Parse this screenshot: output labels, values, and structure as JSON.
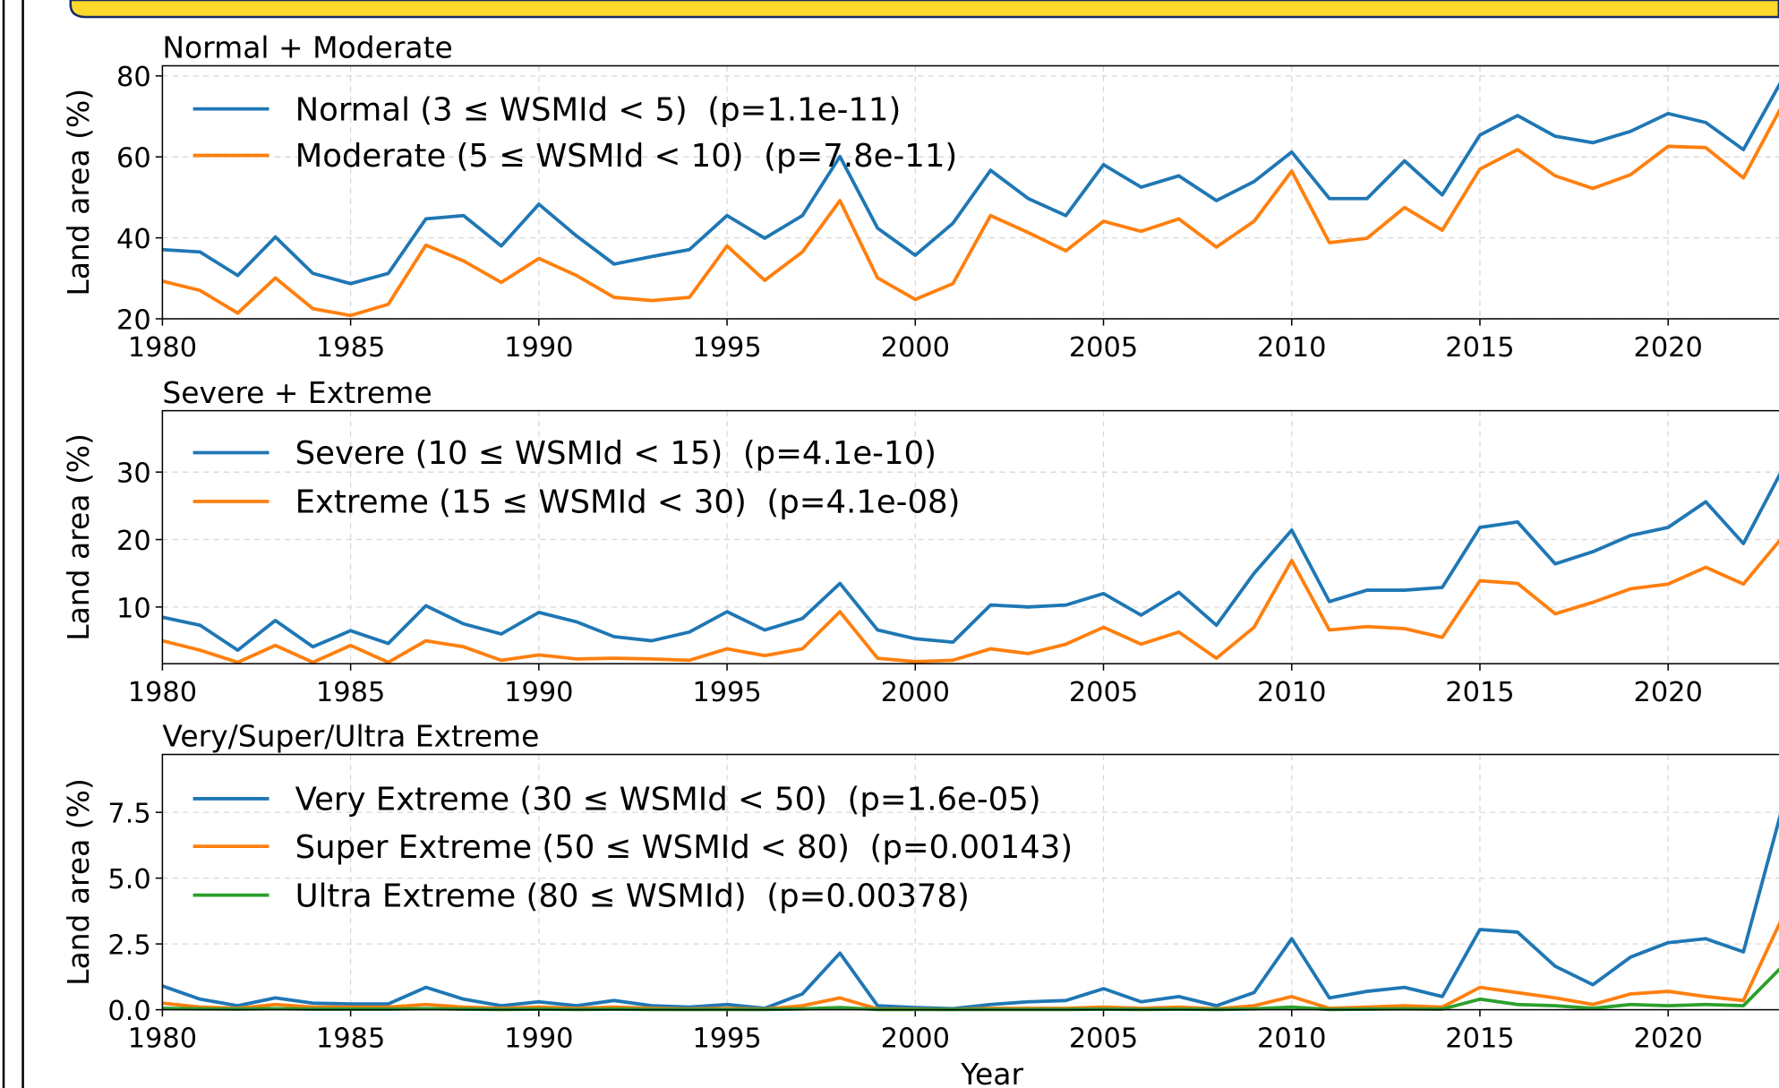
{
  "chart_data": [
    {
      "type": "line",
      "title": "Normal + Moderate",
      "y_label": "Land area (%)",
      "x": [
        1980,
        1981,
        1982,
        1983,
        1984,
        1985,
        1986,
        1987,
        1988,
        1989,
        1990,
        1991,
        1992,
        1993,
        1994,
        1995,
        1996,
        1997,
        1998,
        1999,
        2000,
        2001,
        2002,
        2003,
        2004,
        2005,
        2006,
        2007,
        2008,
        2009,
        2010,
        2011,
        2012,
        2013,
        2014,
        2015,
        2016,
        2017,
        2018,
        2019,
        2020,
        2021,
        2022,
        2023
      ],
      "series": [
        {
          "name": "Normal (3 ≤ WSMId < 5)  (p=1.1e-11)",
          "color": "#1f77b4",
          "values": [
            37.1,
            36.5,
            30.7,
            40.2,
            31.2,
            28.7,
            31.2,
            44.7,
            45.5,
            38,
            48.3,
            40.5,
            33.5,
            35.4,
            37.1,
            45.5,
            39.9,
            45.5,
            60.1,
            42.4,
            35.7,
            43.6,
            56.7,
            49.7,
            45.5,
            58.1,
            52.5,
            55.3,
            49.2,
            53.9,
            61.2,
            49.7,
            49.7,
            59,
            50.6,
            65.4,
            70.2,
            65.1,
            63.5,
            66.3,
            70.7,
            68.5,
            61.8,
            78.6
          ]
        },
        {
          "name": "Moderate (5 ≤ WSMId < 10)  (p=7.8e-11)",
          "color": "#ff7f0e",
          "values": [
            29.3,
            27,
            21.4,
            30.1,
            22.5,
            20.8,
            23.6,
            38.2,
            34.3,
            29,
            34.9,
            30.7,
            25.3,
            24.5,
            25.3,
            38,
            29.5,
            36.5,
            49.2,
            30.1,
            24.8,
            28.7,
            45.5,
            41.3,
            36.8,
            44.1,
            41.6,
            44.7,
            37.7,
            44.1,
            56.5,
            38.8,
            39.9,
            47.5,
            41.9,
            57,
            61.8,
            55.3,
            52.2,
            55.6,
            62.6,
            62.3,
            54.8,
            72.2
          ]
        }
      ],
      "xlim": [
        1980,
        2023
      ],
      "ylim": [
        20,
        82.5
      ],
      "xticks": [
        1980,
        1985,
        1990,
        1995,
        2000,
        2005,
        2010,
        2015,
        2020
      ],
      "yticks": [
        20,
        40,
        60,
        80
      ],
      "grid": true
    },
    {
      "type": "line",
      "title": "Severe + Extreme",
      "y_label": "Land area (%)",
      "x": [
        1980,
        1981,
        1982,
        1983,
        1984,
        1985,
        1986,
        1987,
        1988,
        1989,
        1990,
        1991,
        1992,
        1993,
        1994,
        1995,
        1996,
        1997,
        1998,
        1999,
        2000,
        2001,
        2002,
        2003,
        2004,
        2005,
        2006,
        2007,
        2008,
        2009,
        2010,
        2011,
        2012,
        2013,
        2014,
        2015,
        2016,
        2017,
        2018,
        2019,
        2020,
        2021,
        2022,
        2023
      ],
      "series": [
        {
          "name": "Severe (10 ≤ WSMId < 15)  (p=4.1e-10)",
          "color": "#1f77b4",
          "values": [
            8.5,
            7.3,
            3.6,
            8,
            4.1,
            6.5,
            4.6,
            10.2,
            7.5,
            6,
            9.2,
            7.8,
            5.6,
            5,
            6.3,
            9.3,
            6.6,
            8.3,
            13.5,
            6.6,
            5.3,
            4.8,
            10.3,
            10,
            10.3,
            12,
            8.8,
            12.2,
            7.3,
            15,
            21.4,
            10.8,
            12.5,
            12.5,
            12.9,
            21.8,
            22.6,
            16.4,
            18.2,
            20.6,
            21.8,
            25.6,
            19.4,
            30
          ]
        },
        {
          "name": "Extreme (15 ≤ WSMId < 30)  (p=4.1e-08)",
          "color": "#ff7f0e",
          "values": [
            5,
            3.6,
            1.8,
            4.3,
            1.8,
            4.3,
            1.8,
            5,
            4.1,
            2.1,
            2.9,
            2.3,
            2.4,
            2.3,
            2.1,
            3.8,
            2.8,
            3.8,
            9.3,
            2.4,
            1.9,
            2.1,
            3.8,
            3.1,
            4.5,
            7,
            4.5,
            6.3,
            2.4,
            7,
            16.9,
            6.6,
            7.1,
            6.8,
            5.5,
            13.9,
            13.5,
            9,
            10.7,
            12.7,
            13.4,
            15.9,
            13.4,
            20.1
          ]
        }
      ],
      "xlim": [
        1980,
        2023
      ],
      "ylim": [
        1.6,
        39.1
      ],
      "xticks": [
        1980,
        1985,
        1990,
        1995,
        2000,
        2005,
        2010,
        2015,
        2020
      ],
      "yticks": [
        10,
        20,
        30
      ],
      "grid": true
    },
    {
      "type": "line",
      "title": "Very/Super/Ultra Extreme",
      "y_label": "Land area (%)",
      "x_label": "Year",
      "x": [
        1980,
        1981,
        1982,
        1983,
        1984,
        1985,
        1986,
        1987,
        1988,
        1989,
        1990,
        1991,
        1992,
        1993,
        1994,
        1995,
        1996,
        1997,
        1998,
        1999,
        2000,
        2001,
        2002,
        2003,
        2004,
        2005,
        2006,
        2007,
        2008,
        2009,
        2010,
        2011,
        2012,
        2013,
        2014,
        2015,
        2016,
        2017,
        2018,
        2019,
        2020,
        2021,
        2022,
        2023
      ],
      "series": [
        {
          "name": "Very Extreme (30 ≤ WSMId < 50)  (p=1.6e-05)",
          "color": "#1f77b4",
          "values": [
            0.9,
            0.4,
            0.15,
            0.45,
            0.25,
            0.22,
            0.22,
            0.85,
            0.4,
            0.15,
            0.3,
            0.15,
            0.35,
            0.15,
            0.1,
            0.2,
            0.05,
            0.6,
            2.15,
            0.15,
            0.08,
            0.04,
            0.2,
            0.3,
            0.35,
            0.8,
            0.3,
            0.5,
            0.15,
            0.65,
            2.7,
            0.45,
            0.7,
            0.85,
            0.5,
            3.05,
            2.95,
            1.65,
            0.95,
            2,
            2.55,
            2.7,
            2.2,
            7.5
          ]
        },
        {
          "name": "Super Extreme (50 ≤ WSMId < 80)  (p=0.00143)",
          "color": "#ff7f0e",
          "values": [
            0.25,
            0.1,
            0.05,
            0.2,
            0.1,
            0.1,
            0.1,
            0.2,
            0.1,
            0.05,
            0.1,
            0.05,
            0.1,
            0.05,
            0.03,
            0.05,
            0.02,
            0.15,
            0.45,
            0.03,
            0.02,
            0.01,
            0.05,
            0.05,
            0.05,
            0.1,
            0.05,
            0.1,
            0.03,
            0.15,
            0.5,
            0.05,
            0.1,
            0.15,
            0.1,
            0.85,
            0.65,
            0.45,
            0.2,
            0.6,
            0.7,
            0.5,
            0.35,
            3.4
          ]
        },
        {
          "name": "Ultra Extreme (80 ≤ WSMId)  (p=0.00378)",
          "color": "#2ca02c",
          "values": [
            0.05,
            0.03,
            0.02,
            0.04,
            0.02,
            0.02,
            0.02,
            0.04,
            0.02,
            0.01,
            0.02,
            0.01,
            0.02,
            0.01,
            0.01,
            0.01,
            0.01,
            0.03,
            0.08,
            0.01,
            0.01,
            0.01,
            0.01,
            0.01,
            0.01,
            0.02,
            0.01,
            0.02,
            0.01,
            0.03,
            0.1,
            0.01,
            0.02,
            0.03,
            0.02,
            0.4,
            0.2,
            0.15,
            0.05,
            0.2,
            0.15,
            0.2,
            0.15,
            1.6
          ]
        }
      ],
      "xlim": [
        1980,
        2023
      ],
      "ylim": [
        0,
        9.7
      ],
      "xticks": [
        1980,
        1985,
        1990,
        1995,
        2000,
        2005,
        2010,
        2015,
        2020
      ],
      "yticks": [
        {
          "value": 0,
          "label": "0.0"
        },
        2.5,
        {
          "value": 5,
          "label": "5.0"
        },
        7.5
      ],
      "grid": true
    }
  ]
}
